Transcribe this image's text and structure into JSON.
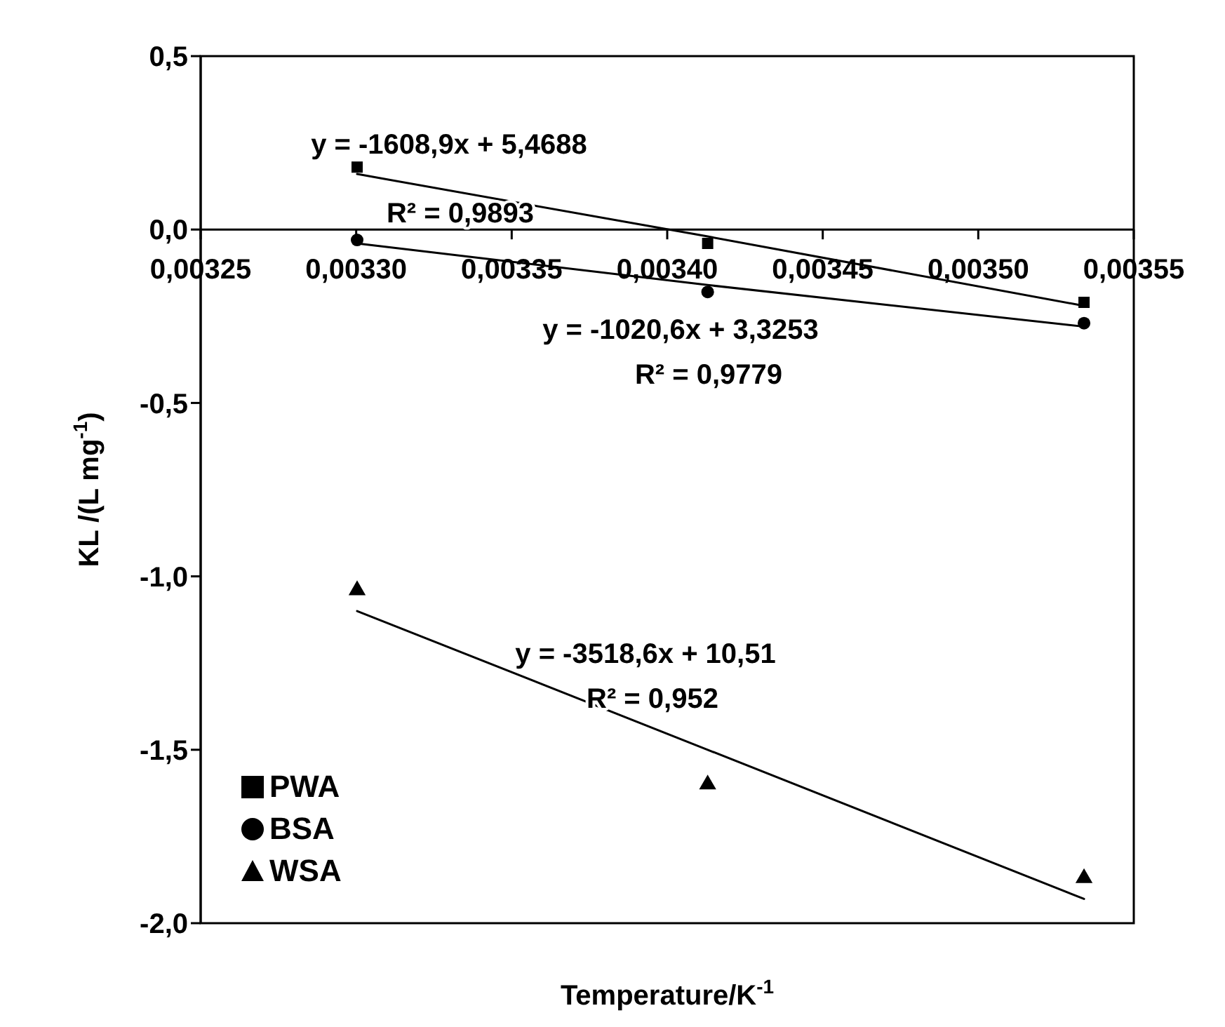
{
  "chart_data": {
    "type": "scatter",
    "xlabel": "Temperature/K$^{-1}$",
    "ylabel": "KL /(L mg$^{-1}$)",
    "x": [
      0.0033003,
      0.003413,
      0.003534
    ],
    "series": [
      {
        "name": "PWA",
        "color": "#000000",
        "marker": "square",
        "values": [
          0.18,
          -0.04,
          -0.21
        ]
      },
      {
        "name": "BSA",
        "color": "#000000",
        "marker": "circle",
        "values": [
          -0.03,
          -0.18,
          -0.27
        ]
      },
      {
        "name": "WSA",
        "color": "#000000",
        "marker": "triangle",
        "values": [
          -1.04,
          -1.6,
          -1.87
        ]
      },
      {
        "type": "line",
        "color": "#000000",
        "marker": "none",
        "values": [
          0.16,
          -0.02,
          -0.22
        ]
      },
      {
        "type": "line",
        "color": "#000000",
        "marker": "none",
        "values": [
          -0.04,
          -0.16,
          -0.28
        ]
      },
      {
        "type": "line",
        "color": "#000000",
        "marker": "none",
        "values": [
          -1.1,
          -1.5,
          -1.93
        ]
      }
    ],
    "xlim": [
      0.00325,
      0.00355
    ],
    "xticks": [
      {
        "value": 0.00325,
        "label": "0,00325"
      },
      {
        "value": 0.0033,
        "label": "0,00330"
      },
      {
        "value": 0.00335,
        "label": "0,00335"
      },
      {
        "value": 0.0034,
        "label": "0,00340"
      },
      {
        "value": 0.00345,
        "label": "0,00345"
      },
      {
        "value": 0.0035,
        "label": "0,00350"
      },
      {
        "value": 0.00355,
        "label": "0,00355"
      }
    ],
    "ylim": [
      -2,
      0.5
    ],
    "yticks": [
      {
        "value": -2,
        "label": "-2,0"
      },
      {
        "value": -1.5,
        "label": "-1,5"
      },
      {
        "value": -1,
        "label": "-1,0"
      },
      {
        "value": -0.5,
        "label": "-0,5"
      },
      {
        "value": 0,
        "label": "0,0"
      },
      {
        "value": 0.5,
        "label": "0,5"
      }
    ],
    "annotations": [
      "y = -1608,9x + 5,4688",
      "R² = 0,9893",
      "y = -1020,6x + 3,3253",
      "R² = 0,9779",
      "y = -3518,6x + 10,51",
      "R² = 0,952"
    ],
    "legend": "bottom left",
    "grid": false
  }
}
